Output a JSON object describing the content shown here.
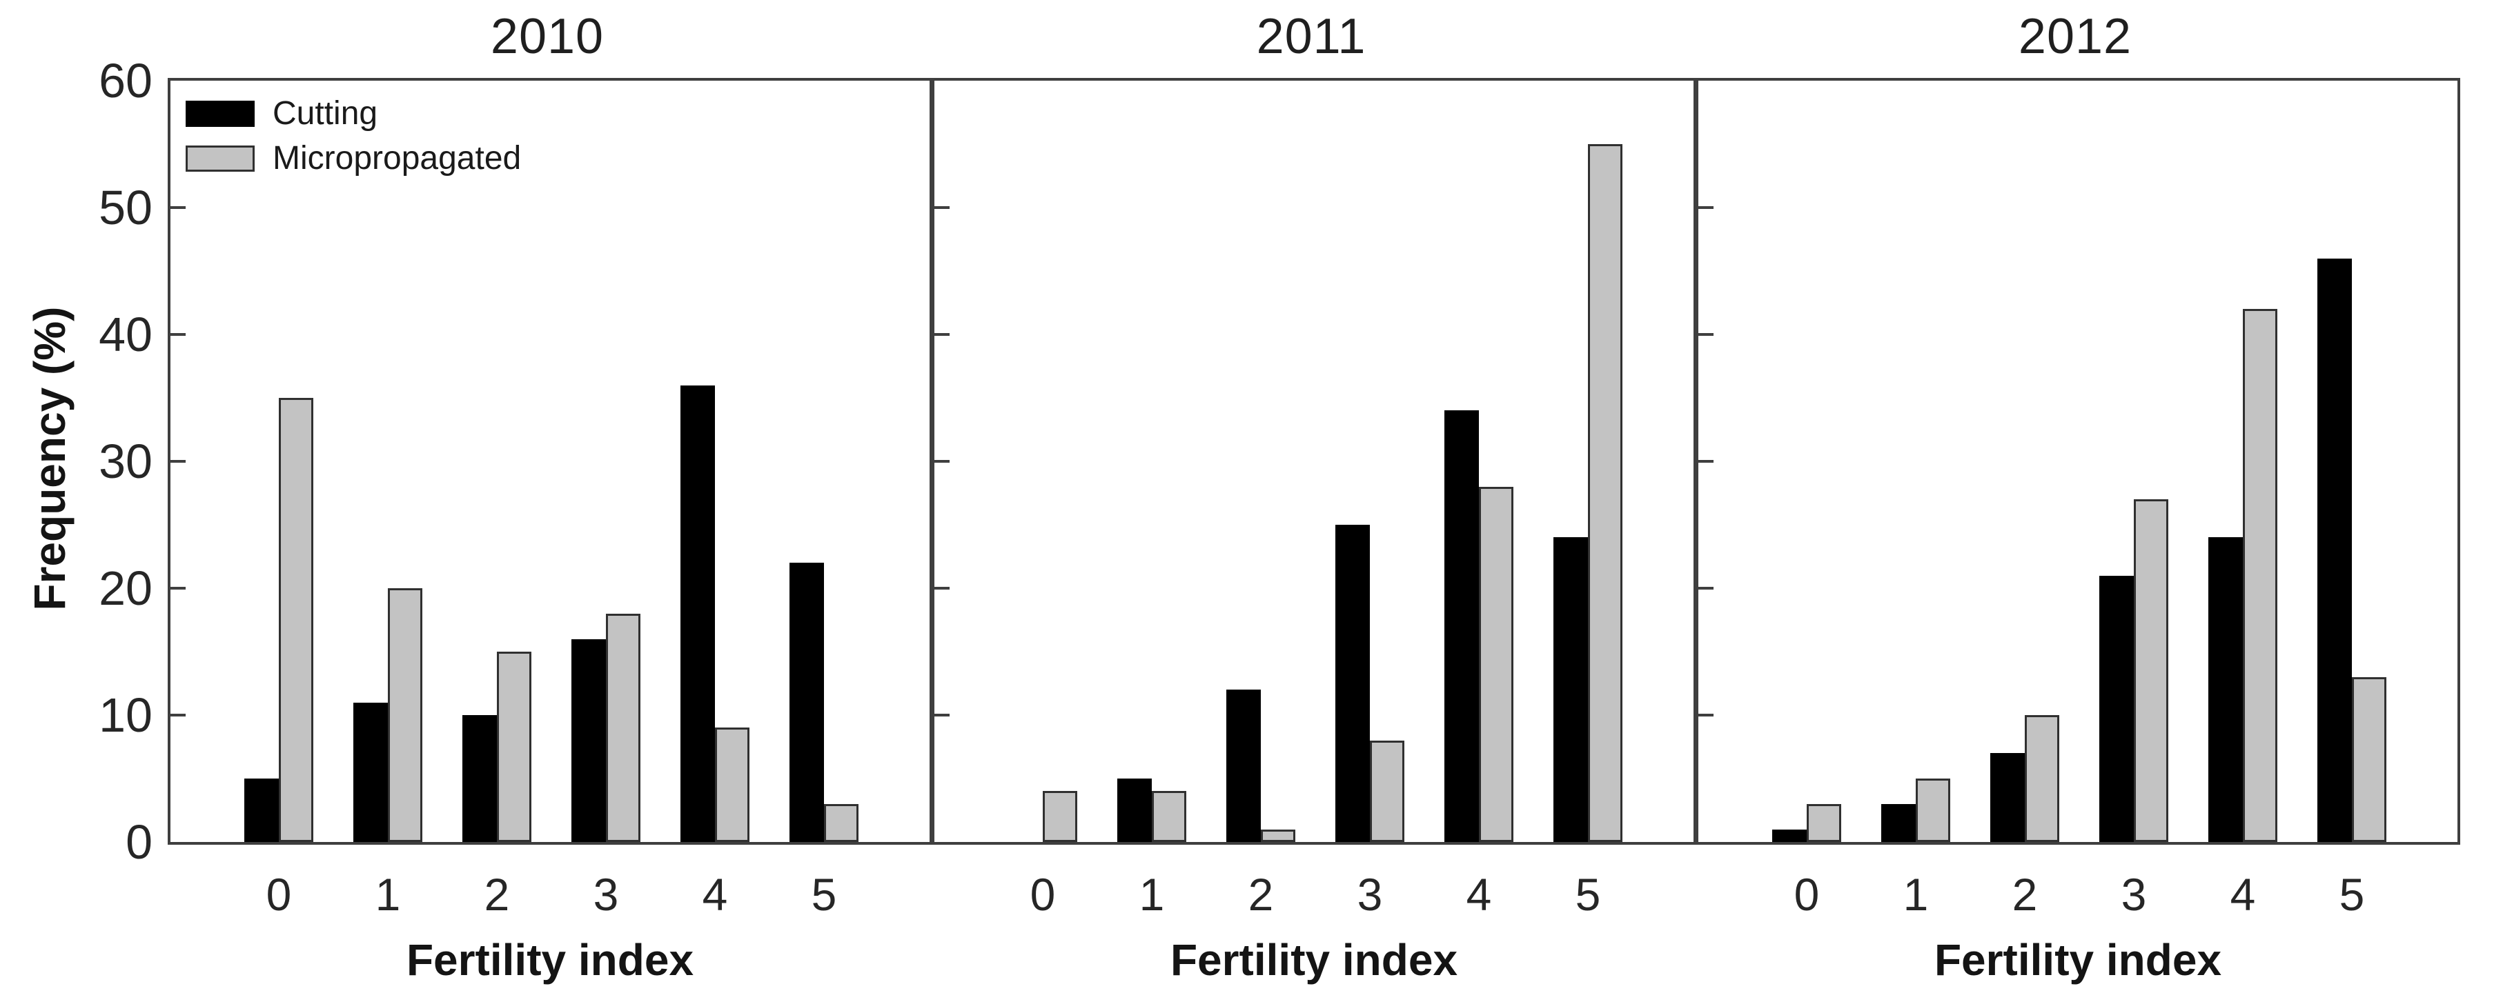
{
  "chart_data": {
    "type": "bar",
    "title": "",
    "xlabel": "Fertility index",
    "ylabel": "Frequency (%)",
    "categories": [
      "0",
      "1",
      "2",
      "3",
      "4",
      "5"
    ],
    "ylim": [
      0,
      60
    ],
    "yticks": [
      0,
      10,
      20,
      30,
      40,
      50,
      60
    ],
    "grid": "off",
    "legend_position": "top-left of first panel",
    "legend": [
      {
        "name": "Cutting",
        "color": "#000000"
      },
      {
        "name": "Micropropagated",
        "color": "#c3c3c3"
      }
    ],
    "panels": [
      {
        "title": "2010",
        "series": [
          {
            "name": "Cutting",
            "values": [
              5,
              11,
              10,
              16,
              36,
              22
            ]
          },
          {
            "name": "Micropropagated",
            "values": [
              35,
              20,
              15,
              18,
              9,
              3
            ]
          }
        ]
      },
      {
        "title": "2011",
        "series": [
          {
            "name": "Cutting",
            "values": [
              0,
              5,
              12,
              25,
              34,
              24
            ]
          },
          {
            "name": "Micropropagated",
            "values": [
              4,
              4,
              1,
              8,
              28,
              55
            ]
          }
        ]
      },
      {
        "title": "2012",
        "series": [
          {
            "name": "Cutting",
            "values": [
              1,
              3,
              7,
              21,
              24,
              46
            ]
          },
          {
            "name": "Micropropagated",
            "values": [
              3,
              5,
              10,
              27,
              42,
              13
            ]
          }
        ]
      }
    ],
    "colors": {
      "cutting": "#000000",
      "micropropagated": "#c3c3c3",
      "axis": "#3f3f3f",
      "text": "#262626"
    }
  }
}
